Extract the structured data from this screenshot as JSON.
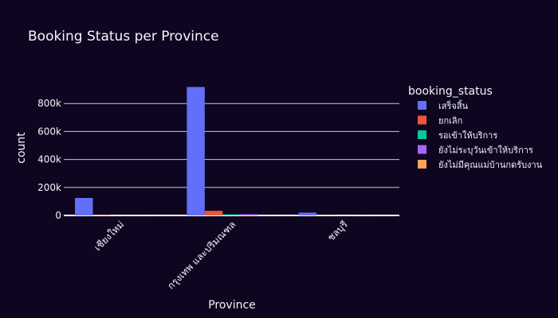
{
  "chart_data": {
    "type": "bar",
    "title": "Booking Status per Province",
    "xlabel": "Province",
    "ylabel": "count",
    "categories": [
      "เชียงใหม่",
      "กรุงเทพ และปริมณฑล",
      "ชลบุรี"
    ],
    "yticks": [
      0,
      200000,
      400000,
      600000,
      800000
    ],
    "ytick_labels": [
      "0",
      "200k",
      "400k",
      "600k",
      "800k"
    ],
    "ylim": [
      0,
      1000000
    ],
    "grid": true,
    "legend_title": "booking_status",
    "legend_position": "right",
    "series": [
      {
        "name": "เสร็จสิ้น",
        "color": "#636efa",
        "values": [
          125000,
          918000,
          20000
        ]
      },
      {
        "name": "ยกเลิก",
        "color": "#ef553b",
        "values": [
          3000,
          33000,
          1000
        ]
      },
      {
        "name": "รอเข้าให้บริการ",
        "color": "#00cc96",
        "values": [
          500,
          8000,
          200
        ]
      },
      {
        "name": "ยังไม่ระบุวันเข้าให้บริการ",
        "color": "#ab63fa",
        "values": [
          500,
          9000,
          200
        ]
      },
      {
        "name": "ยังไม่มีคุณแม่บ้านกดรับงาน",
        "color": "#ffa15a",
        "values": [
          0,
          500,
          0
        ]
      }
    ]
  }
}
